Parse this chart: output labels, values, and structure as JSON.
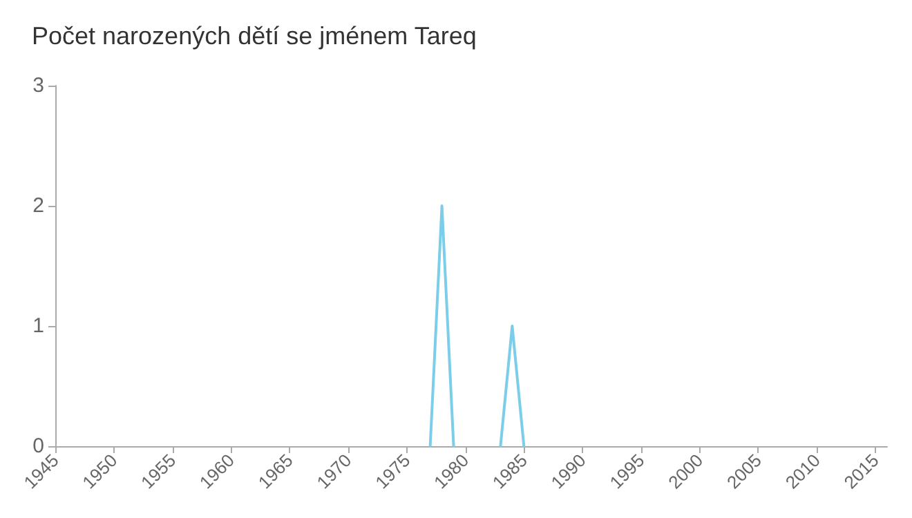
{
  "chart_data": {
    "type": "line",
    "title": "Počet narozených dětí se jménem Tareq",
    "x": [
      1977,
      1978,
      1979,
      1980,
      1983,
      1984,
      1985
    ],
    "series": [
      {
        "color": "#7ccdea",
        "values": [
          0,
          2,
          0,
          null,
          0,
          1,
          0
        ]
      }
    ],
    "xlim": [
      1945,
      2016
    ],
    "xticks": [
      1945,
      1950,
      1955,
      1960,
      1965,
      1970,
      1975,
      1980,
      1985,
      1990,
      1995,
      2000,
      2005,
      2010,
      2015
    ],
    "ylim": [
      0,
      3
    ],
    "yticks": [
      0,
      1,
      2,
      3
    ],
    "grid": false,
    "marker": "none",
    "line_style": "solid"
  }
}
